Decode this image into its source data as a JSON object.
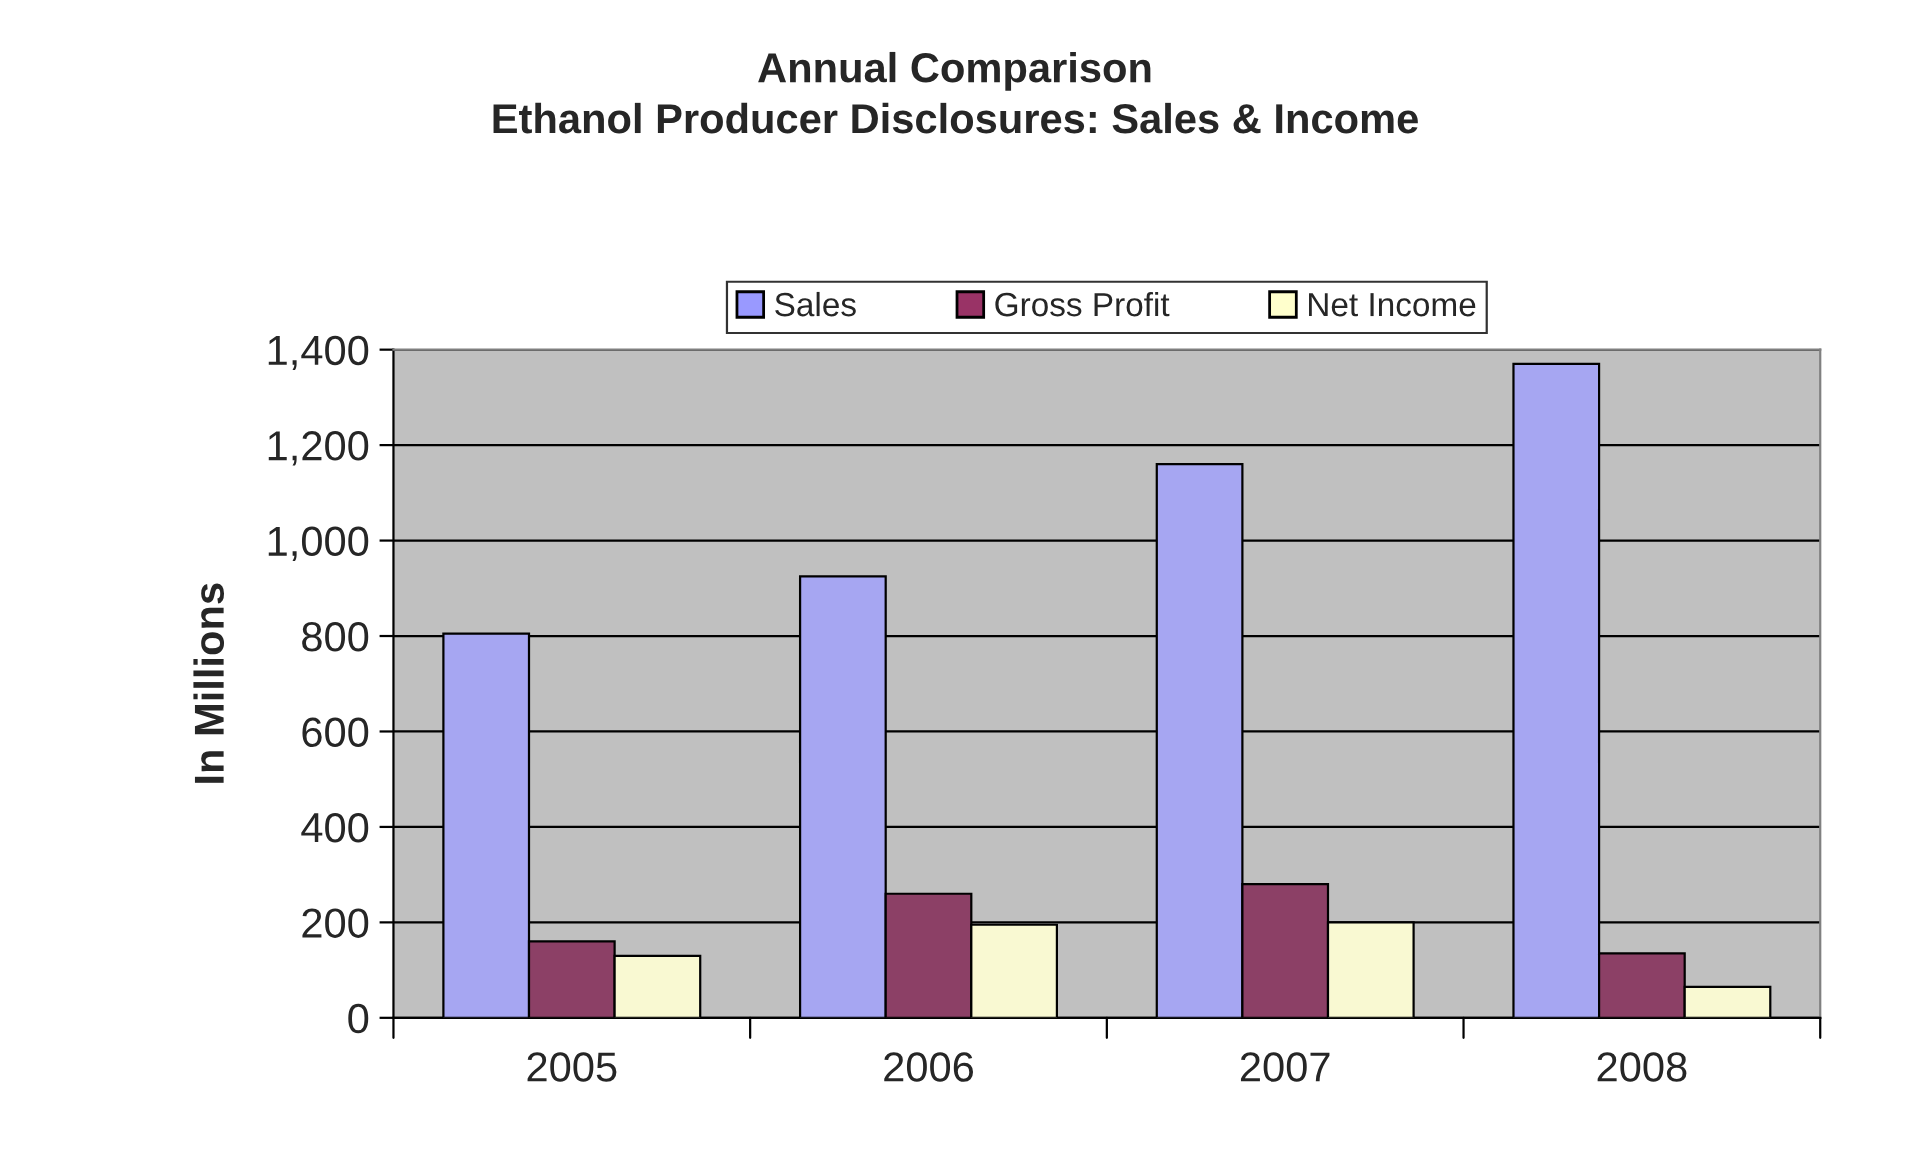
{
  "chart_data": {
    "type": "bar",
    "title": "Annual Comparison\nEthanol Producer Disclosures: Sales & Income",
    "ylabel": "In Millions",
    "categories": [
      "2005",
      "2006",
      "2007",
      "2008"
    ],
    "series": [
      {
        "name": "Sales",
        "color": "#9999ff",
        "values": [
          805,
          925,
          1160,
          1370
        ]
      },
      {
        "name": "Gross Profit",
        "color": "#993366",
        "values": [
          160,
          260,
          280,
          135
        ]
      },
      {
        "name": "Net Income",
        "color": "#ffffcc",
        "values": [
          130,
          195,
          200,
          65
        ]
      }
    ],
    "ylim": [
      0,
      1400
    ],
    "yticks": [
      0,
      {
        "value": 200,
        "label": "200"
      },
      {
        "value": 400,
        "label": "400"
      },
      {
        "value": 600,
        "label": "600"
      },
      {
        "value": 800,
        "label": "800"
      },
      {
        "value": 1000,
        "label": "1,000"
      },
      {
        "value": 1200,
        "label": "1,200"
      },
      {
        "value": 1400,
        "label": "1,400"
      }
    ],
    "grid": "y",
    "legend": "top"
  }
}
